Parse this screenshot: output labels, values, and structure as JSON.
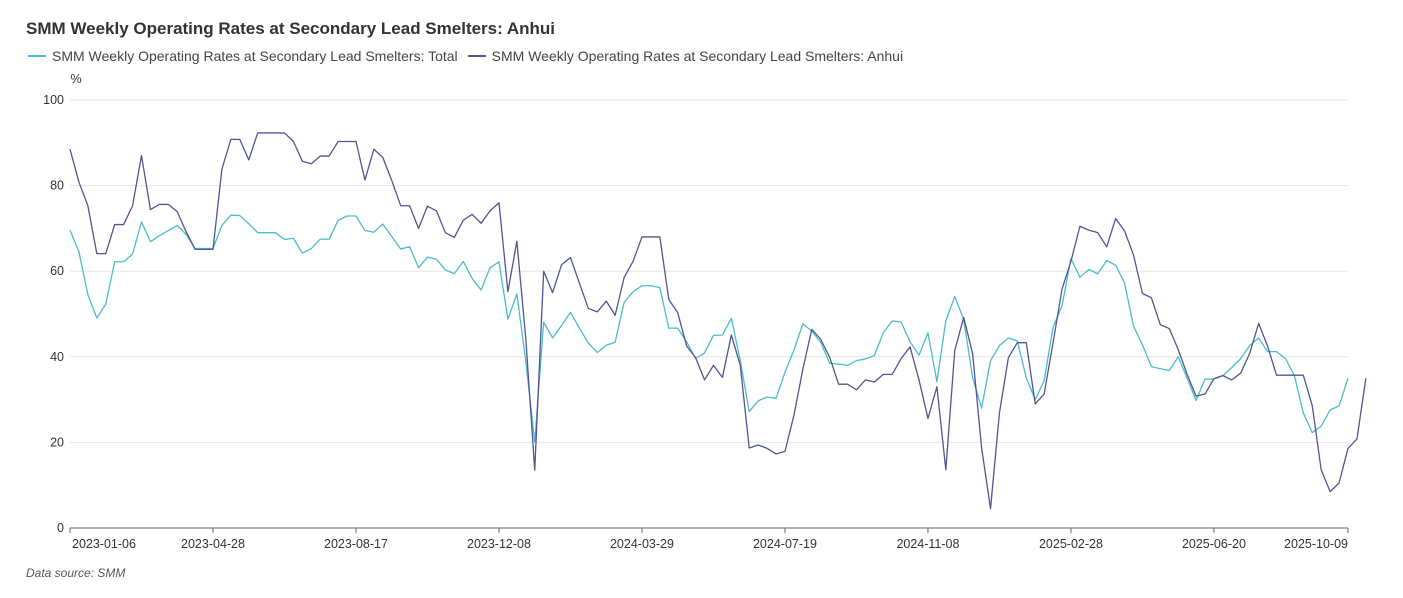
{
  "chart_data": {
    "type": "line",
    "title": "SMM Weekly Operating Rates at Secondary Lead Smelters: Anhui",
    "ylabel": "%",
    "xlabel": "",
    "ylim": [
      0,
      100
    ],
    "yticks": [
      0,
      20,
      40,
      60,
      80,
      100
    ],
    "xtick_labels": [
      "2023-01-06",
      "2023-04-28",
      "2023-08-17",
      "2023-12-08",
      "2024-03-29",
      "2024-07-19",
      "2024-11-08",
      "2025-02-28",
      "2025-06-20",
      "2025-10-09"
    ],
    "xtick_indices": [
      0,
      16,
      32,
      48,
      64,
      80,
      96,
      112,
      128,
      143
    ],
    "series": [
      {
        "name": "SMM Weekly Operating Rates at Secondary Lead Smelters: Total",
        "color": "#4bbccb",
        "values": [
          69.6,
          64.5,
          54.5,
          49.1,
          52.3,
          62.2,
          62.2,
          64,
          71.5,
          66.9,
          68.3,
          69.5,
          70.7,
          68.6,
          65.3,
          65.3,
          65.3,
          70.7,
          73.1,
          73,
          71.1,
          69,
          69,
          69,
          67.4,
          67.7,
          64.2,
          65.3,
          67.5,
          67.5,
          71.9,
          72.9,
          72.9,
          69.5,
          69.1,
          71,
          68.1,
          65.2,
          65.7,
          60.8,
          63.3,
          62.8,
          60.3,
          59.4,
          62.3,
          58.3,
          55.6,
          60.8,
          62.2,
          48.8,
          54.7,
          39,
          20.1,
          48.1,
          44.4,
          47.3,
          50.4,
          46.7,
          43.2,
          41,
          42.7,
          43.4,
          52.7,
          55.2,
          56.6,
          56.6,
          56.2,
          46.7,
          46.7,
          43.5,
          39.6,
          40.9,
          45,
          45.1,
          49,
          39.1,
          27.2,
          29.7,
          30.6,
          30.3,
          36.4,
          41.5,
          47.7,
          46,
          43.4,
          38.5,
          38.3,
          38,
          39.1,
          39.5,
          40.3,
          45.6,
          48.4,
          48.1,
          43.5,
          40.4,
          45.6,
          34.2,
          48.4,
          54.1,
          48.7,
          35.1,
          28,
          39.1,
          42.6,
          44.4,
          43.7,
          35.1,
          30,
          34.4,
          46.9,
          51.9,
          63,
          58.6,
          60.4,
          59.4,
          62.5,
          61.4,
          57.2,
          47.2,
          42.8,
          37.7,
          37.2,
          36.8,
          40,
          35,
          29.8,
          34.8,
          34.8,
          35.6,
          37.5,
          39.6,
          42.6,
          44.4,
          41.2,
          41.2,
          39.6,
          35.6,
          26.9,
          22.3,
          23.8,
          27.6,
          28.5,
          35
        ]
      },
      {
        "name": "SMM Weekly Operating Rates at Secondary Lead Smelters: Anhui",
        "color": "#515590",
        "values": [
          88.5,
          80.8,
          75.3,
          64.1,
          64.1,
          70.9,
          70.9,
          75.3,
          87,
          74.4,
          75.6,
          75.6,
          73.9,
          69.2,
          65.1,
          65.1,
          65.1,
          83.9,
          90.8,
          90.8,
          86,
          92.3,
          92.3,
          92.3,
          92.3,
          90.3,
          85.7,
          85.1,
          86.9,
          86.9,
          90.3,
          90.3,
          90.3,
          81.3,
          88.5,
          86.6,
          81.2,
          75.3,
          75.3,
          70,
          75.2,
          74.1,
          69,
          67.9,
          71.9,
          73.3,
          71.2,
          74.1,
          76,
          55.2,
          67,
          44.3,
          13.5,
          60,
          55,
          61.5,
          63.2,
          57.2,
          51.3,
          50.5,
          53,
          49.7,
          58.5,
          62.3,
          68,
          68,
          68,
          53.4,
          50.3,
          42.5,
          39.8,
          34.6,
          38,
          35.2,
          45.1,
          38,
          18.7,
          19.4,
          18.6,
          17.3,
          17.9,
          26.3,
          37.1,
          46.4,
          44.1,
          39.9,
          33.6,
          33.6,
          32.3,
          34.6,
          34.1,
          35.9,
          35.9,
          39.6,
          42.3,
          34.6,
          25.6,
          33,
          13.6,
          41.5,
          49.2,
          40.7,
          18.8,
          4.5,
          26.9,
          39.8,
          43.3,
          43.3,
          29,
          31.3,
          43.3,
          55.8,
          62.3,
          70.5,
          69.6,
          69,
          65.7,
          72.3,
          69.4,
          63.8,
          54.8,
          53.8,
          47.5,
          46.6,
          41.7,
          35.9,
          30.8,
          31.3,
          34.9,
          35.6,
          34.6,
          36.2,
          40.8,
          47.8,
          42.5,
          35.7,
          35.7,
          35.7,
          35.7,
          28.6,
          13.6,
          8.5,
          10.5,
          18.6,
          20.8,
          35
        ]
      }
    ]
  },
  "footer": {
    "source": "Data source:  SMM"
  }
}
